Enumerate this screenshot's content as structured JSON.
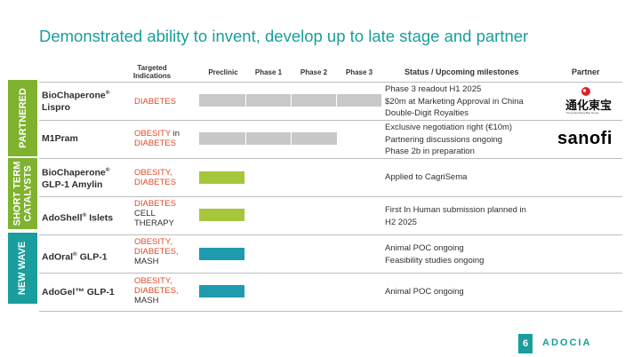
{
  "title": "Demonstrated ability to invent, develop up to late stage and partner",
  "headers": {
    "indications_line1": "Targeted",
    "indications_line2": "Indications",
    "preclinic": "Preclinic",
    "phase1": "Phase 1",
    "phase2": "Phase 2",
    "phase3": "Phase 3",
    "status": "Status / Upcoming milestones",
    "partner": "Partner"
  },
  "sections": {
    "partnered": "PARTNERED",
    "short_term_line1": "SHORT TERM",
    "short_term_line2": "CATALYSTS",
    "new_wave": "NEW WAVE"
  },
  "colors": {
    "teal": "#1a9d9d",
    "green": "#7fb22e",
    "gray_bar": "#c8c8c8",
    "lime_bar": "#a6c63c",
    "blue_bar": "#1f9bb0",
    "indication_red": "#e04a2a"
  },
  "rows": [
    {
      "name_line1": "BioChaperone",
      "name_sup": "®",
      "name_line2": "Lispro",
      "ind1": "DIABETES",
      "status1": "Phase 3 readout H1 2025",
      "status2": "$20m at Marketing Approval in China",
      "status3": "Double-Digit Royalties",
      "partner": "Tonghua Dongbao logo",
      "partner_text_cn": "通化東宝",
      "partner_text_en": "Tong Hua Dong Bao Group",
      "progress_phase": "Phase 3"
    },
    {
      "name_line1": "M1Pram",
      "ind1_red": "OBESITY",
      "ind1_plain": " in",
      "ind2": "DIABETES",
      "status1": "Exclusive negotiation right (€10m)",
      "status2": "Partnering discussions ongoing",
      "status3": "Phase 2b in preparation",
      "partner_text": "sanofi",
      "progress_phase": "Phase 2"
    },
    {
      "name_line1": "BioChaperone",
      "name_sup": "®",
      "name_line2": "GLP-1 Amylin",
      "ind1": "OBESITY,",
      "ind2": "DIABETES",
      "status1": "Applied to CagriSema",
      "progress_phase": "Preclinic"
    },
    {
      "name_line1": "AdoShell",
      "name_sup": "®",
      "name_line1b": " Islets",
      "ind1": "DIABETES",
      "ind2": "CELL",
      "ind3": "THERAPY",
      "status1": "First In Human submission planned in",
      "status2": "H2 2025",
      "progress_phase": "Preclinic"
    },
    {
      "name_line1": "AdOral",
      "name_sup": "®",
      "name_line1b": " GLP-1",
      "ind1": "OBESITY,",
      "ind2": "DIABETES,",
      "ind3": "MASH",
      "status1": "Animal POC ongoing",
      "status2": "Feasibility studies ongoing",
      "progress_phase": "Preclinic"
    },
    {
      "name_line1": "AdoGel™ GLP-1",
      "ind1": "OBESITY,",
      "ind2": "DIABETES,",
      "ind3": "MASH",
      "status1": "Animal POC ongoing",
      "progress_phase": "Preclinic"
    }
  ],
  "footer": {
    "page": "6",
    "brand": "ADOCIA"
  }
}
